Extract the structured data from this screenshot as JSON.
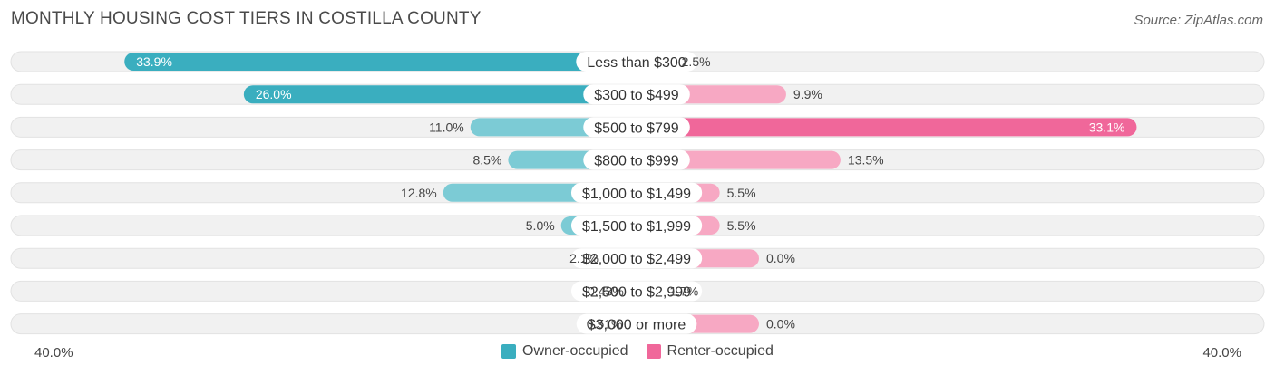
{
  "title": "MONTHLY HOUSING COST TIERS IN COSTILLA COUNTY",
  "source": "Source: ZipAtlas.com",
  "colors": {
    "owner": "#3aaebf",
    "owner_light": "#7ccbd5",
    "renter": "#f0679a",
    "renter_light": "#f7a8c3",
    "row_bg": "#f1f1f1"
  },
  "axis": {
    "left_label": "40.0%",
    "right_label": "40.0%"
  },
  "legend": {
    "owner_label": "Owner-occupied",
    "renter_label": "Renter-occupied"
  },
  "chart_data": {
    "type": "bar",
    "orientation": "horizontal-diverging",
    "xlim": [
      -40,
      40
    ],
    "categories": [
      "Less than $300",
      "$300 to $499",
      "$500 to $799",
      "$800 to $999",
      "$1,000 to $1,499",
      "$1,500 to $1,999",
      "$2,000 to $2,499",
      "$2,500 to $2,999",
      "$3,000 or more"
    ],
    "series": [
      {
        "name": "Owner-occupied",
        "values": [
          33.9,
          26.0,
          11.0,
          8.5,
          12.8,
          5.0,
          2.1,
          0.43,
          0.51
        ],
        "labels": [
          "33.9%",
          "26.0%",
          "11.0%",
          "8.5%",
          "12.8%",
          "5.0%",
          "2.1%",
          "0.43%",
          "0.51%"
        ]
      },
      {
        "name": "Renter-occupied",
        "values": [
          2.5,
          9.9,
          33.1,
          13.5,
          5.5,
          5.5,
          0.0,
          1.7,
          0.0
        ],
        "labels": [
          "2.5%",
          "9.9%",
          "33.1%",
          "13.5%",
          "5.5%",
          "5.5%",
          "0.0%",
          "1.7%",
          "0.0%"
        ]
      }
    ]
  }
}
